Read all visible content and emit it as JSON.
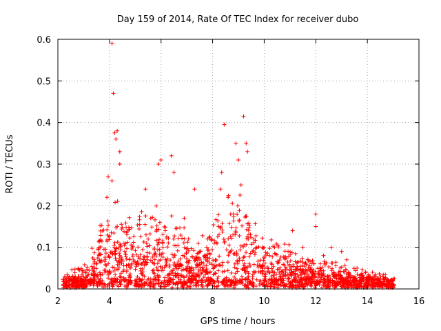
{
  "chart_data": {
    "type": "scatter",
    "title": "Day 159 of 2014, Rate Of TEC Index for receiver dubo",
    "xlabel": "GPS time / hours",
    "ylabel": "ROTI / TECUs",
    "xlim": [
      2,
      16
    ],
    "ylim": [
      0,
      0.6
    ],
    "x_ticks": [
      "2",
      "4",
      "6",
      "8",
      "10",
      "12",
      "14",
      "16"
    ],
    "y_ticks": [
      "0",
      "0.1",
      "0.2",
      "0.3",
      "0.4",
      "0.5",
      "0.6"
    ],
    "grid": true,
    "marker": "+",
    "color": "#ff0000",
    "series": [
      {
        "name": "ROTI",
        "x": [
          4.1,
          4.15,
          8.45,
          9.2,
          4.3,
          4.25,
          4.2,
          4.1,
          4.4,
          4.4,
          3.95,
          3.9,
          6.4,
          6.0,
          5.9,
          6.5,
          7.3,
          8.35,
          8.3,
          8.9,
          9.0,
          9.3,
          9.35,
          9.1,
          5.4,
          5.6,
          5.5,
          6.9,
          7.5,
          7.8,
          8.6,
          8.7,
          9.6,
          10.2,
          10.4,
          11.1,
          11.5,
          12.0,
          12.0,
          12.3,
          12.6,
          13.0,
          13.2,
          13.6,
          14.2,
          14.6,
          14.9,
          3.0,
          3.4,
          3.6
        ],
        "y": [
          0.59,
          0.47,
          0.395,
          0.415,
          0.38,
          0.36,
          0.375,
          0.26,
          0.33,
          0.3,
          0.27,
          0.22,
          0.32,
          0.31,
          0.3,
          0.28,
          0.24,
          0.28,
          0.24,
          0.35,
          0.31,
          0.35,
          0.33,
          0.25,
          0.24,
          0.17,
          0.12,
          0.17,
          0.09,
          0.12,
          0.22,
          0.18,
          0.12,
          0.08,
          0.1,
          0.14,
          0.1,
          0.18,
          0.15,
          0.08,
          0.1,
          0.09,
          0.07,
          0.05,
          0.04,
          0.03,
          0.02,
          0.03,
          0.06,
          0.1
        ]
      }
    ],
    "envelope": {
      "x": [
        2.2,
        2.6,
        3.0,
        3.3,
        3.6,
        3.9,
        4.1,
        4.3,
        4.5,
        4.8,
        5.1,
        5.4,
        5.7,
        6.0,
        6.3,
        6.6,
        6.9,
        7.2,
        7.5,
        7.8,
        8.1,
        8.4,
        8.7,
        9.0,
        9.3,
        9.6,
        9.9,
        10.2,
        10.5,
        10.8,
        11.1,
        11.4,
        11.7,
        12.0,
        12.3,
        12.6,
        12.9,
        13.2,
        13.5,
        13.8,
        14.1,
        14.4,
        14.7,
        15.0
      ],
      "y": [
        0.03,
        0.04,
        0.045,
        0.08,
        0.13,
        0.18,
        0.21,
        0.2,
        0.17,
        0.14,
        0.14,
        0.16,
        0.17,
        0.17,
        0.15,
        0.14,
        0.12,
        0.1,
        0.1,
        0.12,
        0.15,
        0.19,
        0.2,
        0.19,
        0.17,
        0.14,
        0.12,
        0.1,
        0.09,
        0.09,
        0.08,
        0.07,
        0.07,
        0.07,
        0.06,
        0.06,
        0.055,
        0.05,
        0.045,
        0.04,
        0.035,
        0.035,
        0.03,
        0.025
      ]
    },
    "x_start": 2.2,
    "x_end": 15.05
  }
}
